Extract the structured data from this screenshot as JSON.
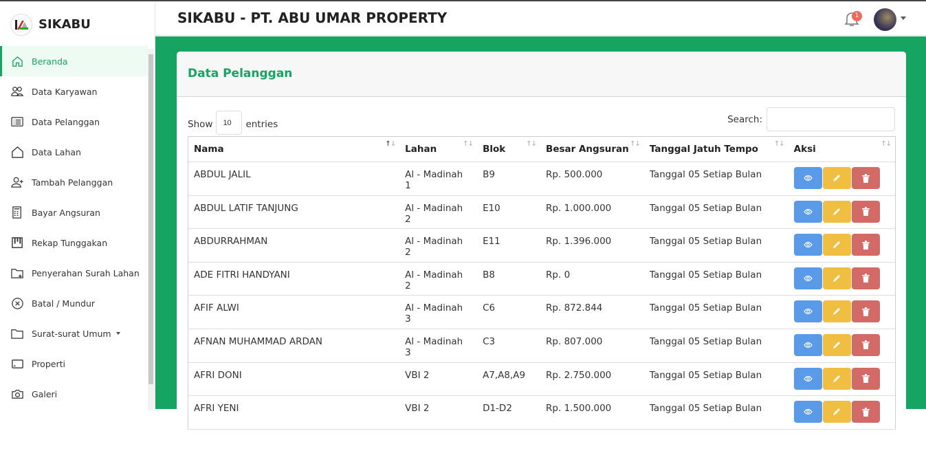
{
  "brand": {
    "name": "SIKABU"
  },
  "header": {
    "title": "SIKABU - PT. ABU UMAR PROPERTY",
    "notification_count": "1"
  },
  "sidebar": {
    "items": [
      {
        "label": "Beranda",
        "icon": "home-icon",
        "active": true
      },
      {
        "label": "Data Karyawan",
        "icon": "users-icon"
      },
      {
        "label": "Data Pelanggan",
        "icon": "list-icon"
      },
      {
        "label": "Data Lahan",
        "icon": "house-icon"
      },
      {
        "label": "Tambah Pelanggan",
        "icon": "user-plus-icon"
      },
      {
        "label": "Bayar Angsuran",
        "icon": "calculator-icon"
      },
      {
        "label": "Rekap Tunggakan",
        "icon": "columns-icon"
      },
      {
        "label": "Penyerahan Surah Lahan",
        "icon": "folder-plus-icon"
      },
      {
        "label": "Batal / Mundur",
        "icon": "x-circle-icon"
      },
      {
        "label": "Surat-surat Umum",
        "icon": "folder-icon",
        "dropdown": true
      },
      {
        "label": "Properti",
        "icon": "card-icon"
      },
      {
        "label": "Galeri",
        "icon": "camera-icon"
      }
    ]
  },
  "card": {
    "title": "Data Pelanggan"
  },
  "controls": {
    "show_label": "Show",
    "entries_value": "10",
    "entries_label": "entries",
    "search_label": "Search:",
    "search_value": ""
  },
  "colors": {
    "accent": "#16a462",
    "view": "#5a9be9",
    "edit": "#f0be40",
    "delete": "#d46a66"
  },
  "table": {
    "columns": [
      "Nama",
      "Lahan",
      "Blok",
      "Besar Angsuran",
      "Tanggal Jatuh Tempo",
      "Aksi"
    ],
    "rows": [
      [
        "ABDUL JALIL",
        "Al - Madinah 1",
        "B9",
        "Rp. 500.000",
        "Tanggal 05 Setiap Bulan"
      ],
      [
        "ABDUL LATIF TANJUNG",
        "Al - Madinah 2",
        "E10",
        "Rp. 1.000.000",
        "Tanggal 05 Setiap Bulan"
      ],
      [
        "ABDURRAHMAN",
        "Al - Madinah 2",
        "E11",
        "Rp. 1.396.000",
        "Tanggal 05 Setiap Bulan"
      ],
      [
        "ADE FITRI HANDYANI",
        "Al - Madinah 2",
        "B8",
        "Rp. 0",
        "Tanggal 05 Setiap Bulan"
      ],
      [
        "AFIF ALWI",
        "Al - Madinah 3",
        "C6",
        "Rp. 872.844",
        "Tanggal 05 Setiap Bulan"
      ],
      [
        "AFNAN MUHAMMAD ARDAN",
        "Al - Madinah 3",
        "C3",
        "Rp. 807.000",
        "Tanggal 05 Setiap Bulan"
      ],
      [
        "AFRI DONI",
        "VBI 2",
        "A7,A8,A9",
        "Rp. 2.750.000",
        "Tanggal 05 Setiap Bulan"
      ],
      [
        "AFRI YENI",
        "VBI 2",
        "D1-D2",
        "Rp. 1.500.000",
        "Tanggal 05 Setiap Bulan"
      ]
    ]
  }
}
